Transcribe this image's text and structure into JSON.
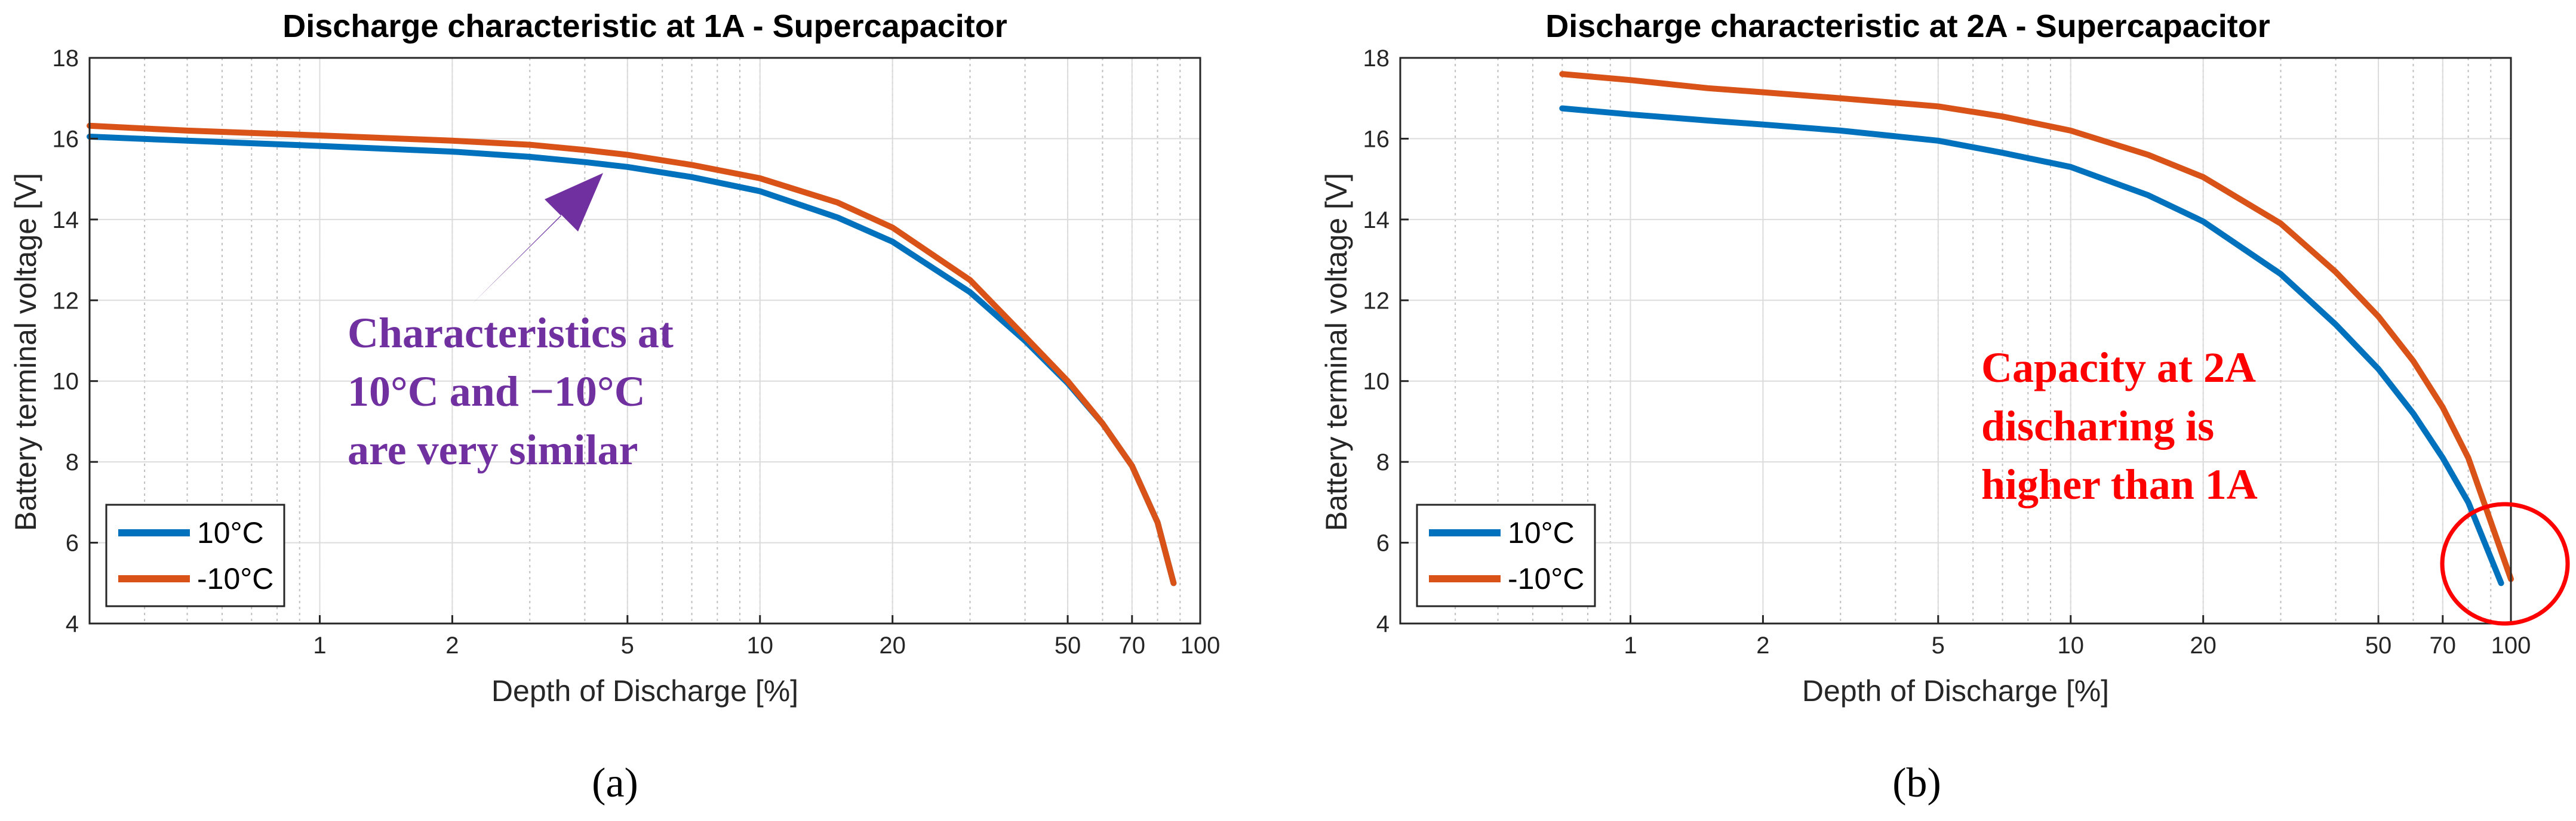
{
  "chart_data": [
    {
      "type": "line",
      "title": "Discharge characteristic at 1A - Supercapacitor",
      "xlabel": "Depth of Discharge [%]",
      "ylabel": "Battery terminal voltage [V]",
      "xscale": "log",
      "xlim": [
        0.3,
        100
      ],
      "ylim": [
        4,
        18
      ],
      "grid": true,
      "xticks": [
        1,
        2,
        5,
        10,
        20,
        50,
        70,
        100
      ],
      "xtick_labels": [
        "1",
        "2",
        "5",
        "10",
        "20",
        "50",
        "70",
        "100"
      ],
      "yticks": [
        4,
        6,
        8,
        10,
        12,
        14,
        16,
        18
      ],
      "ytick_labels": [
        "4",
        "6",
        "8",
        "10",
        "12",
        "14",
        "16",
        "18"
      ],
      "legend": "bottom-left",
      "series": [
        {
          "name": "10°C",
          "color": "#0072BD",
          "x": [
            0.3,
            0.5,
            1,
            2,
            3,
            4,
            5,
            7,
            10,
            15,
            20,
            30,
            40,
            50,
            60,
            70,
            80,
            87
          ],
          "y": [
            16.05,
            15.95,
            15.82,
            15.68,
            15.55,
            15.42,
            15.3,
            15.05,
            14.7,
            14.05,
            13.45,
            12.2,
            11.0,
            9.95,
            8.95,
            7.9,
            6.5,
            5.0
          ]
        },
        {
          "name": "-10°C",
          "color": "#D95319",
          "x": [
            0.3,
            0.5,
            1,
            2,
            3,
            4,
            5,
            7,
            10,
            15,
            20,
            30,
            40,
            50,
            60,
            70,
            80,
            87
          ],
          "y": [
            16.32,
            16.2,
            16.08,
            15.95,
            15.85,
            15.72,
            15.6,
            15.35,
            15.02,
            14.42,
            13.8,
            12.5,
            11.1,
            10.0,
            8.95,
            7.9,
            6.5,
            5.0
          ]
        }
      ],
      "annotations": [
        {
          "text": "Characteristics at",
          "color": "#7030A0"
        },
        {
          "text": "10°C and −10°C",
          "color": "#7030A0"
        },
        {
          "text": "are very similar",
          "color": "#7030A0"
        }
      ],
      "panel_label": "(a)"
    },
    {
      "type": "line",
      "title": "Discharge characteristic at 2A - Supercapacitor",
      "xlabel": "Depth of Discharge [%]",
      "ylabel": "Battery terminal voltage [V]",
      "xscale": "log",
      "xlim": [
        0.3,
        100
      ],
      "ylim": [
        4,
        18
      ],
      "grid": true,
      "xticks": [
        1,
        2,
        5,
        10,
        20,
        50,
        70,
        100
      ],
      "xtick_labels": [
        "1",
        "2",
        "5",
        "10",
        "20",
        "50",
        "70",
        "100"
      ],
      "yticks": [
        4,
        6,
        8,
        10,
        12,
        14,
        16,
        18
      ],
      "ytick_labels": [
        "4",
        "6",
        "8",
        "10",
        "12",
        "14",
        "16",
        "18"
      ],
      "legend": "bottom-left",
      "series": [
        {
          "name": "10°C",
          "color": "#0072BD",
          "x": [
            0.7,
            1,
            1.5,
            2,
            3,
            5,
            7,
            10,
            15,
            20,
            30,
            40,
            50,
            60,
            70,
            80,
            95
          ],
          "y": [
            16.75,
            16.6,
            16.45,
            16.35,
            16.2,
            15.95,
            15.65,
            15.3,
            14.6,
            13.95,
            12.65,
            11.4,
            10.3,
            9.2,
            8.1,
            7.0,
            5.0
          ]
        },
        {
          "name": "-10°C",
          "color": "#D95319",
          "x": [
            0.7,
            1,
            1.5,
            2,
            3,
            5,
            7,
            10,
            15,
            20,
            30,
            40,
            50,
            60,
            70,
            80,
            100
          ],
          "y": [
            17.6,
            17.45,
            17.25,
            17.15,
            17.0,
            16.8,
            16.55,
            16.2,
            15.6,
            15.05,
            13.9,
            12.7,
            11.6,
            10.5,
            9.35,
            8.1,
            5.1
          ]
        }
      ],
      "annotations": [
        {
          "text": "Capacity at 2A",
          "color": "#FF0000"
        },
        {
          "text": "discharing is",
          "color": "#FF0000"
        },
        {
          "text": "higher than 1A",
          "color": "#FF0000"
        }
      ],
      "panel_label": "(b)"
    }
  ]
}
